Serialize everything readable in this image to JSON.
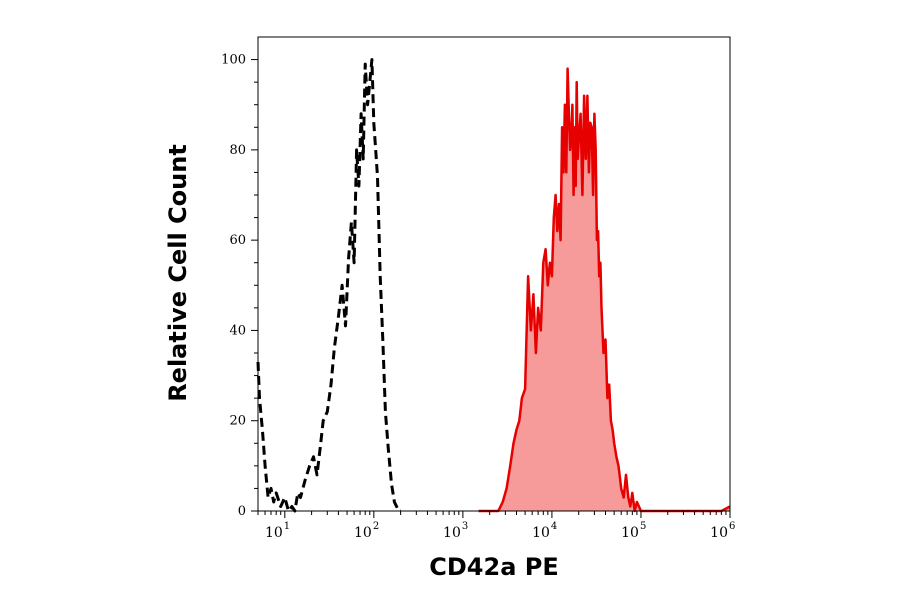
{
  "chart_data": {
    "type": "area",
    "xlabel": "CD42a PE",
    "ylabel": "Relative Cell Count",
    "xscale": "log",
    "xlim": [
      5,
      1000000
    ],
    "ylim": [
      0,
      105
    ],
    "x_tick_labels": [
      {
        "value": 10,
        "base": "10",
        "exp": "1"
      },
      {
        "value": 100,
        "base": "10",
        "exp": "2"
      },
      {
        "value": 1000,
        "base": "10",
        "exp": "3"
      },
      {
        "value": 10000,
        "base": "10",
        "exp": "4"
      },
      {
        "value": 100000,
        "base": "10",
        "exp": "5"
      },
      {
        "value": 1000000,
        "base": "10",
        "exp": "6"
      }
    ],
    "y_ticks": [
      0,
      20,
      40,
      60,
      80,
      100
    ],
    "colors": {
      "stained_line": "#e60000",
      "stained_fill": "#f79a9a",
      "control_line": "#000000"
    },
    "series": [
      {
        "style": "dashed-outline",
        "x": [
          5,
          5.2,
          5.6,
          6,
          6.5,
          7,
          7.5,
          8,
          9,
          10,
          11,
          12,
          13,
          14,
          15,
          17,
          19,
          21,
          23,
          25,
          27,
          30,
          33,
          36,
          40,
          44,
          48,
          52,
          56,
          60,
          64,
          68,
          72,
          76,
          80,
          85,
          90,
          95,
          100,
          105,
          110,
          118,
          126,
          135,
          145,
          158,
          170,
          180,
          190,
          200
        ],
        "y": [
          33,
          25,
          18,
          10,
          3,
          5,
          2,
          4,
          1,
          3,
          0,
          1,
          0,
          4,
          3,
          7,
          10,
          12,
          8,
          14,
          20,
          22,
          28,
          36,
          43,
          50,
          41,
          56,
          64,
          55,
          80,
          72,
          88,
          78,
          99,
          90,
          95,
          100,
          86,
          80,
          74,
          52,
          38,
          22,
          14,
          6,
          2,
          1,
          0,
          0
        ]
      },
      {
        "style": "filled",
        "x": [
          1500,
          2000,
          2500,
          2800,
          3100,
          3400,
          3700,
          4000,
          4300,
          4600,
          5000,
          5400,
          5800,
          6200,
          6600,
          7000,
          7500,
          8000,
          8500,
          9000,
          9500,
          10000,
          10500,
          11000,
          11500,
          12000,
          12500,
          13000,
          13500,
          14000,
          14500,
          15000,
          15500,
          16000,
          16500,
          17000,
          17500,
          18000,
          18500,
          19000,
          19500,
          20000,
          21000,
          22000,
          23000,
          24000,
          25000,
          26000,
          27000,
          28000,
          29000,
          30000,
          31000,
          32000,
          33000,
          34000,
          35000,
          36000,
          37000,
          38000,
          40000,
          42000,
          44000,
          46000,
          48000,
          50000,
          53000,
          56000,
          60000,
          64000,
          68000,
          72000,
          76000,
          80000,
          85000,
          90000,
          100000,
          120000,
          150000,
          200000,
          300000,
          500000,
          800000,
          1000000
        ],
        "y": [
          0,
          0,
          0,
          2,
          5,
          10,
          15,
          18,
          20,
          25,
          27,
          52,
          40,
          48,
          35,
          45,
          40,
          55,
          58,
          50,
          55,
          52,
          65,
          70,
          62,
          68,
          60,
          85,
          75,
          90,
          75,
          98,
          88,
          80,
          83,
          90,
          70,
          85,
          72,
          95,
          78,
          82,
          88,
          70,
          92,
          78,
          92,
          75,
          86,
          85,
          70,
          88,
          80,
          60,
          62,
          52,
          55,
          45,
          40,
          35,
          38,
          25,
          28,
          20,
          18,
          15,
          12,
          10,
          5,
          3,
          8,
          3,
          1,
          4,
          0,
          2,
          0,
          0,
          0,
          0,
          0,
          0,
          0,
          1
        ]
      }
    ]
  }
}
